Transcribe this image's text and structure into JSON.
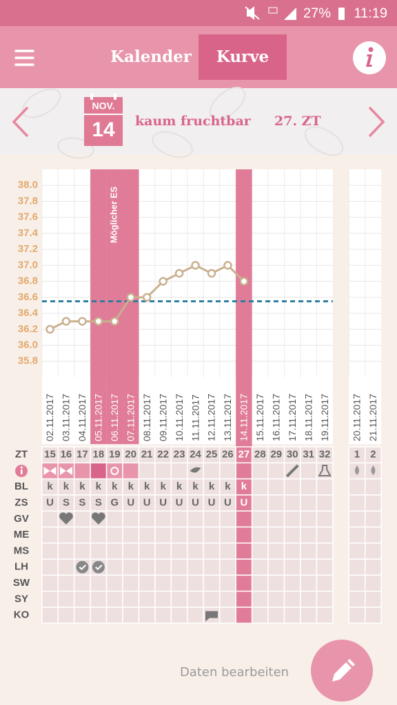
{
  "status_bar": {
    "battery": "27%",
    "time": "11:19"
  },
  "header": {
    "tabs": [
      "Kalender",
      "Kurve"
    ]
  },
  "date_bar": {
    "month": "NOV.",
    "day": "14",
    "status": "kaum fruchtbar",
    "cycle_day": "27. ZT"
  },
  "chart_data": {
    "type": "line",
    "x": [
      "02.11.2017",
      "03.11.2017",
      "04.11.2017",
      "05.11.2017",
      "06.11.2017",
      "07.11.2017",
      "08.11.2017",
      "09.11.2017",
      "10.11.2017",
      "11.11.2017",
      "12.11.2017",
      "13.11.2017",
      "14.11.2017",
      "15.11.2017",
      "16.11.2017",
      "17.11.2017",
      "18.11.2017",
      "19.11.2017",
      "20.11.2017",
      "21.11.2017"
    ],
    "series": [
      {
        "color": "#c9b08e",
        "values": [
          36.2,
          36.3,
          36.3,
          36.3,
          36.3,
          36.6,
          36.6,
          36.8,
          36.9,
          37.0,
          36.9,
          37.0,
          36.8,
          null,
          null,
          null,
          null,
          null,
          null,
          null
        ]
      }
    ],
    "coverline": 36.55,
    "annotation": "Möglicher ES",
    "ylim": [
      35.6,
      38.2
    ],
    "yticks": [
      {
        "value": 35.8,
        "label": "35.8"
      },
      {
        "value": 36.0,
        "label": "36.0"
      },
      {
        "value": 36.2,
        "label": "36.2"
      },
      {
        "value": 36.4,
        "label": "36.4"
      },
      {
        "value": 36.6,
        "label": "36.6"
      },
      {
        "value": 36.8,
        "label": "36.8"
      },
      {
        "value": 37.0,
        "label": "37.0"
      },
      {
        "value": 37.2,
        "label": "37.2"
      },
      {
        "value": 37.4,
        "label": "37.4"
      },
      {
        "value": 37.6,
        "label": "37.6"
      },
      {
        "value": 37.8,
        "label": "37.8"
      },
      {
        "value": 38.0,
        "label": "38.0"
      }
    ],
    "grid": true
  },
  "table": {
    "rows": [
      {
        "label": "ZT",
        "cells": [
          15,
          16,
          17,
          18,
          19,
          20,
          21,
          22,
          23,
          24,
          25,
          26,
          27,
          28,
          29,
          30,
          31,
          32,
          1,
          2
        ]
      },
      {
        "label": "BL",
        "cells": [
          "k",
          "k",
          "k",
          "k",
          "k",
          "k",
          "k",
          "k",
          "k",
          "k",
          "k",
          "k",
          "k",
          null,
          null,
          null,
          null,
          null,
          null,
          null
        ]
      },
      {
        "label": "ZS",
        "cells": [
          "U",
          "S",
          "S",
          "S",
          "G",
          "U",
          "U",
          "U",
          "U",
          "U",
          "U",
          "U",
          "U",
          null,
          null,
          null,
          null,
          null,
          null,
          null
        ]
      },
      {
        "label": "GV"
      },
      {
        "label": "ME"
      },
      {
        "label": "MS"
      },
      {
        "label": "LH"
      },
      {
        "label": "SW"
      },
      {
        "label": "SY"
      },
      {
        "label": "KO"
      }
    ]
  },
  "button": {
    "label": "Daten bearbeiten"
  }
}
